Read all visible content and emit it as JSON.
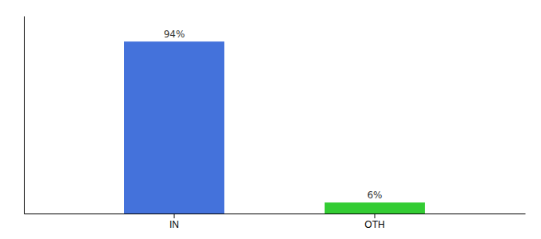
{
  "chart_data": {
    "type": "bar",
    "categories": [
      "IN",
      "OTH"
    ],
    "values": [
      94,
      6
    ],
    "value_labels": [
      "94%",
      "6%"
    ],
    "colors": [
      "#4472db",
      "#33cc33"
    ],
    "ylim": [
      0,
      108
    ],
    "yticks": [],
    "data_labels": true,
    "tick_labels": "x"
  }
}
